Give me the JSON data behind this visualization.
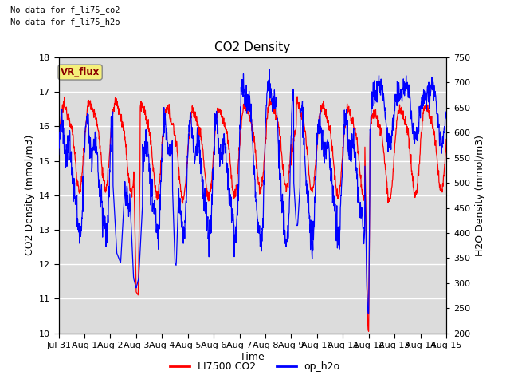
{
  "title": "CO2 Density",
  "xlabel": "Time",
  "ylabel_left": "CO2 Density (mmol/m3)",
  "ylabel_right": "H2O Density (mmol/m3)",
  "text_no_data_1": "No data for f_li75_co2",
  "text_no_data_2": "No data for f_li75_h2o",
  "vr_flux_label": "VR_flux",
  "legend_entries": [
    "LI7500 CO2",
    "op_h2o"
  ],
  "ylim_left": [
    10.0,
    18.0
  ],
  "ylim_right": [
    200,
    750
  ],
  "background_color": "#dcdcdc",
  "xtick_labels": [
    "Jul 31",
    "Aug 1",
    "Aug 2",
    "Aug 3",
    "Aug 4",
    "Aug 5",
    "Aug 6",
    "Aug 7",
    "Aug 8",
    "Aug 9",
    "Aug 10",
    "Aug 11",
    "Aug 12",
    "Aug 13",
    "Aug 14",
    "Aug 15"
  ],
  "yticks_left": [
    10.0,
    11.0,
    12.0,
    13.0,
    14.0,
    15.0,
    16.0,
    17.0,
    18.0
  ],
  "yticks_right": [
    200,
    250,
    300,
    350,
    400,
    450,
    500,
    550,
    600,
    650,
    700,
    750
  ]
}
